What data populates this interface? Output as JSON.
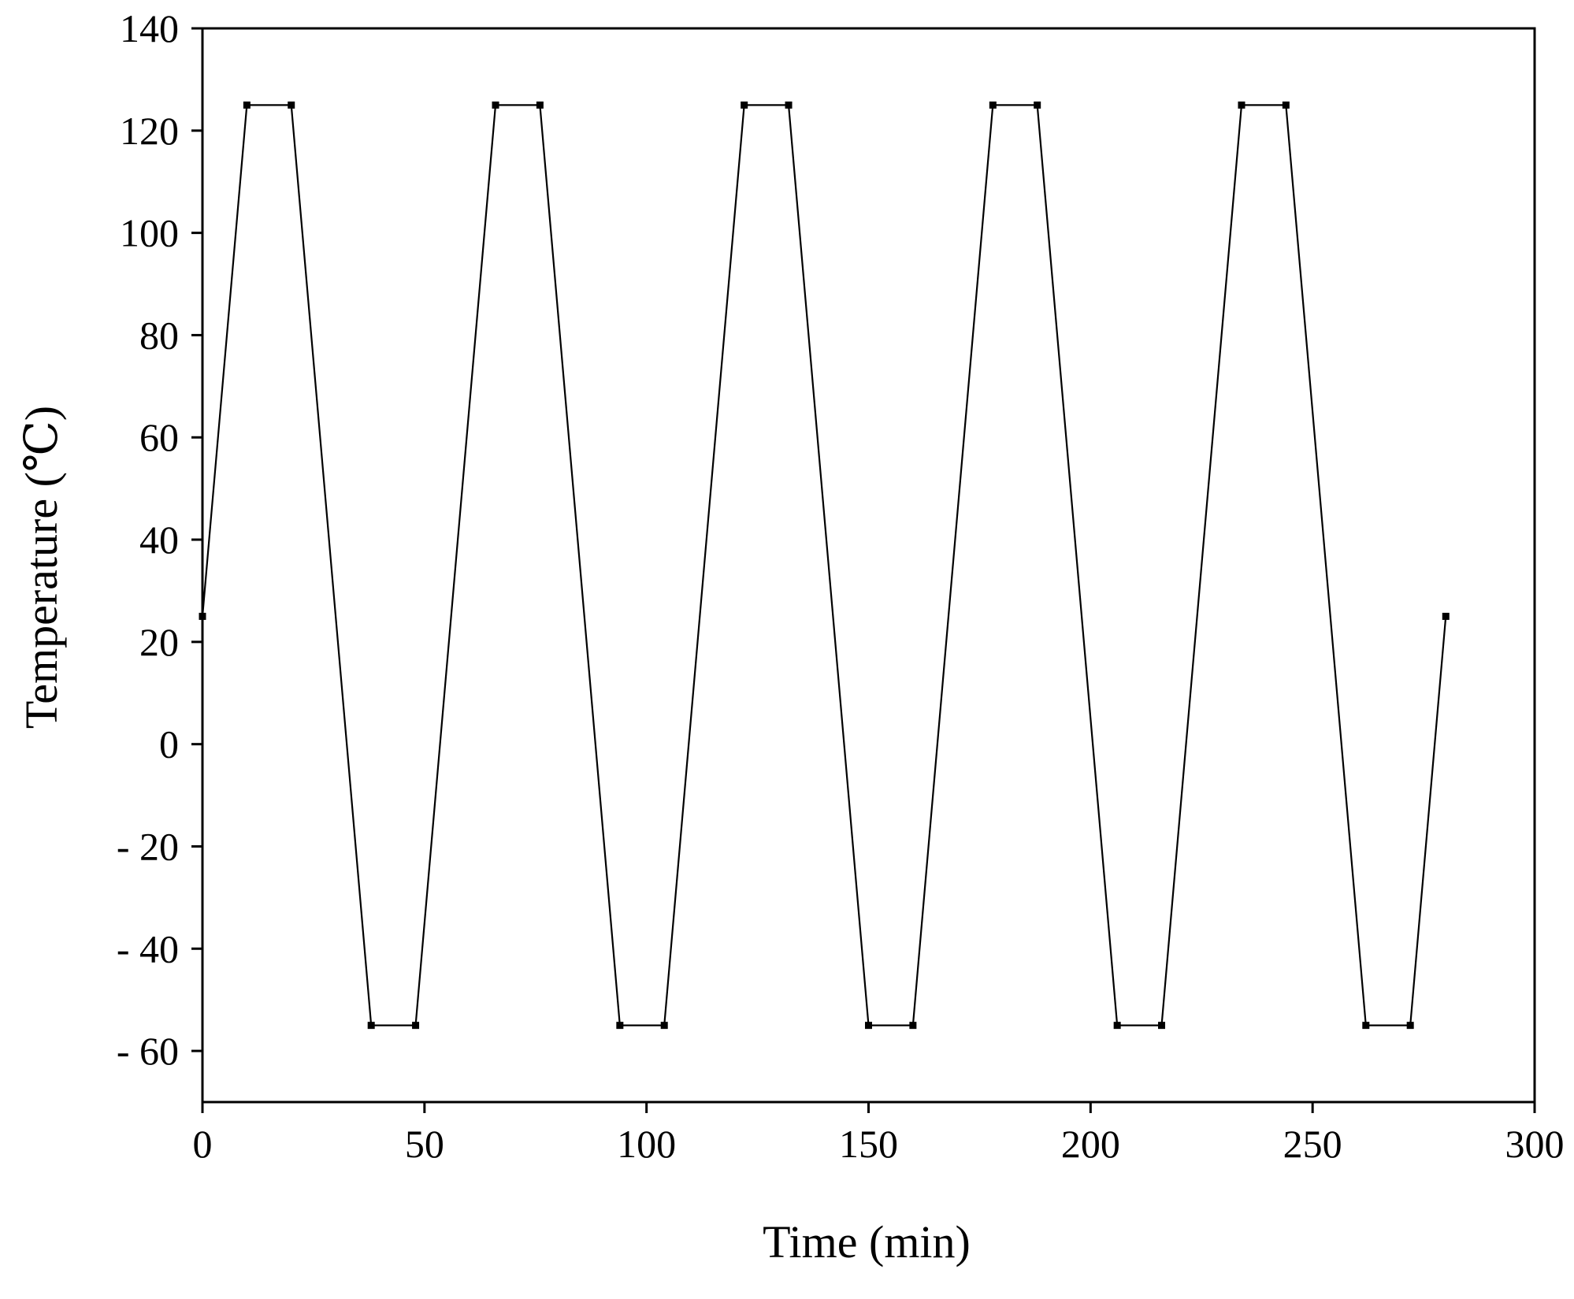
{
  "chart_data": {
    "type": "line",
    "title": "",
    "xlabel": "Time (min)",
    "ylabel": "Temperature (℃)",
    "xlim": [
      0,
      300
    ],
    "ylim": [
      -70,
      140
    ],
    "xticks": [
      0,
      50,
      100,
      150,
      200,
      250,
      300
    ],
    "yticks": [
      -60,
      -40,
      -20,
      0,
      20,
      40,
      60,
      80,
      100,
      120,
      140
    ],
    "grid": false,
    "legend": "none",
    "series": [
      {
        "color": "#000000",
        "points": [
          [
            0,
            25
          ],
          [
            10,
            125
          ],
          [
            20,
            125
          ],
          [
            38,
            -55
          ],
          [
            48,
            -55
          ],
          [
            66,
            125
          ],
          [
            76,
            125
          ],
          [
            94,
            -55
          ],
          [
            104,
            -55
          ],
          [
            122,
            125
          ],
          [
            132,
            125
          ],
          [
            150,
            -55
          ],
          [
            160,
            -55
          ],
          [
            178,
            125
          ],
          [
            188,
            125
          ],
          [
            206,
            -55
          ],
          [
            216,
            -55
          ],
          [
            234,
            125
          ],
          [
            244,
            125
          ],
          [
            262,
            -55
          ],
          [
            272,
            -55
          ],
          [
            280,
            25
          ]
        ]
      }
    ]
  }
}
